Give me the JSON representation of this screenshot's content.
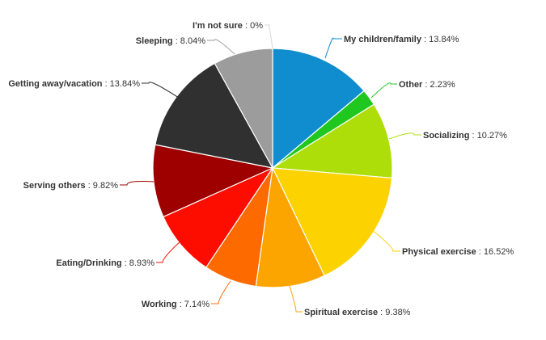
{
  "chart_data": {
    "type": "pie",
    "title": "",
    "slices": [
      {
        "label": "My children/family",
        "value": 13.84,
        "display": "13.84%",
        "color": "#108DCF"
      },
      {
        "label": "Other",
        "value": 2.23,
        "display": "2.23%",
        "color": "#1FC71F"
      },
      {
        "label": "Socializing",
        "value": 10.27,
        "display": "10.27%",
        "color": "#AEDE0A"
      },
      {
        "label": "Physical exercise",
        "value": 16.52,
        "display": "16.52%",
        "color": "#FCD200"
      },
      {
        "label": "Spiritual exercise",
        "value": 9.38,
        "display": "9.38%",
        "color": "#FCA400"
      },
      {
        "label": "Working",
        "value": 7.14,
        "display": "7.14%",
        "color": "#FC6A00"
      },
      {
        "label": "Eating/Drinking",
        "value": 8.93,
        "display": "8.93%",
        "color": "#FC0D00"
      },
      {
        "label": "Serving others",
        "value": 9.82,
        "display": "9.82%",
        "color": "#9E0000"
      },
      {
        "label": "Getting away/vacation",
        "value": 13.84,
        "display": "13.84%",
        "color": "#303030"
      },
      {
        "label": "Sleeping",
        "value": 8.04,
        "display": "8.04%",
        "color": "#9C9C9C"
      },
      {
        "label": "I'm not sure",
        "value": 0,
        "display": "0%",
        "color": "#D8D8D8"
      }
    ]
  }
}
